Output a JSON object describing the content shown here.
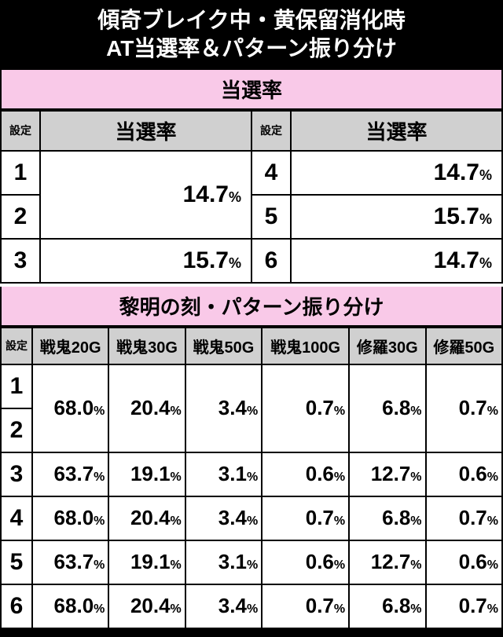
{
  "colors": {
    "header_bg": "#000000",
    "header_fg": "#ffffff",
    "section_bg": "#f9c9e8",
    "cell_header_bg": "#d0d0d0",
    "border": "#000000",
    "cell_bg": "#ffffff"
  },
  "main_title_l1": "傾奇ブレイク中・黄保留消化時",
  "main_title_l2": "AT当選率＆パターン振り分け",
  "table1": {
    "section_title": "当選率",
    "settei_label": "設定",
    "rate_label": "当選率",
    "left": [
      {
        "settei": "1",
        "rate": "14.7",
        "rowspan": 2
      },
      {
        "settei": "2"
      },
      {
        "settei": "3",
        "rate": "15.7"
      }
    ],
    "right": [
      {
        "settei": "4",
        "rate": "14.7"
      },
      {
        "settei": "5",
        "rate": "15.7"
      },
      {
        "settei": "6",
        "rate": "14.7"
      }
    ]
  },
  "table2": {
    "section_title": "黎明の刻・パターン振り分け",
    "settei_label": "設定",
    "cols": [
      "戦鬼20G",
      "戦鬼30G",
      "戦鬼50G",
      "戦鬼100G",
      "修羅30G",
      "修羅50G"
    ],
    "rows": [
      {
        "settei": "1",
        "vals": [
          "68.0",
          "20.4",
          "3.4",
          "0.7",
          "6.8",
          "0.7"
        ],
        "merge_with_next": true
      },
      {
        "settei": "2"
      },
      {
        "settei": "3",
        "vals": [
          "63.7",
          "19.1",
          "3.1",
          "0.6",
          "12.7",
          "0.6"
        ]
      },
      {
        "settei": "4",
        "vals": [
          "68.0",
          "20.4",
          "3.4",
          "0.7",
          "6.8",
          "0.7"
        ]
      },
      {
        "settei": "5",
        "vals": [
          "63.7",
          "19.1",
          "3.1",
          "0.6",
          "12.7",
          "0.6"
        ]
      },
      {
        "settei": "6",
        "vals": [
          "68.0",
          "20.4",
          "3.4",
          "0.7",
          "6.8",
          "0.7"
        ]
      }
    ]
  },
  "pct": "%"
}
